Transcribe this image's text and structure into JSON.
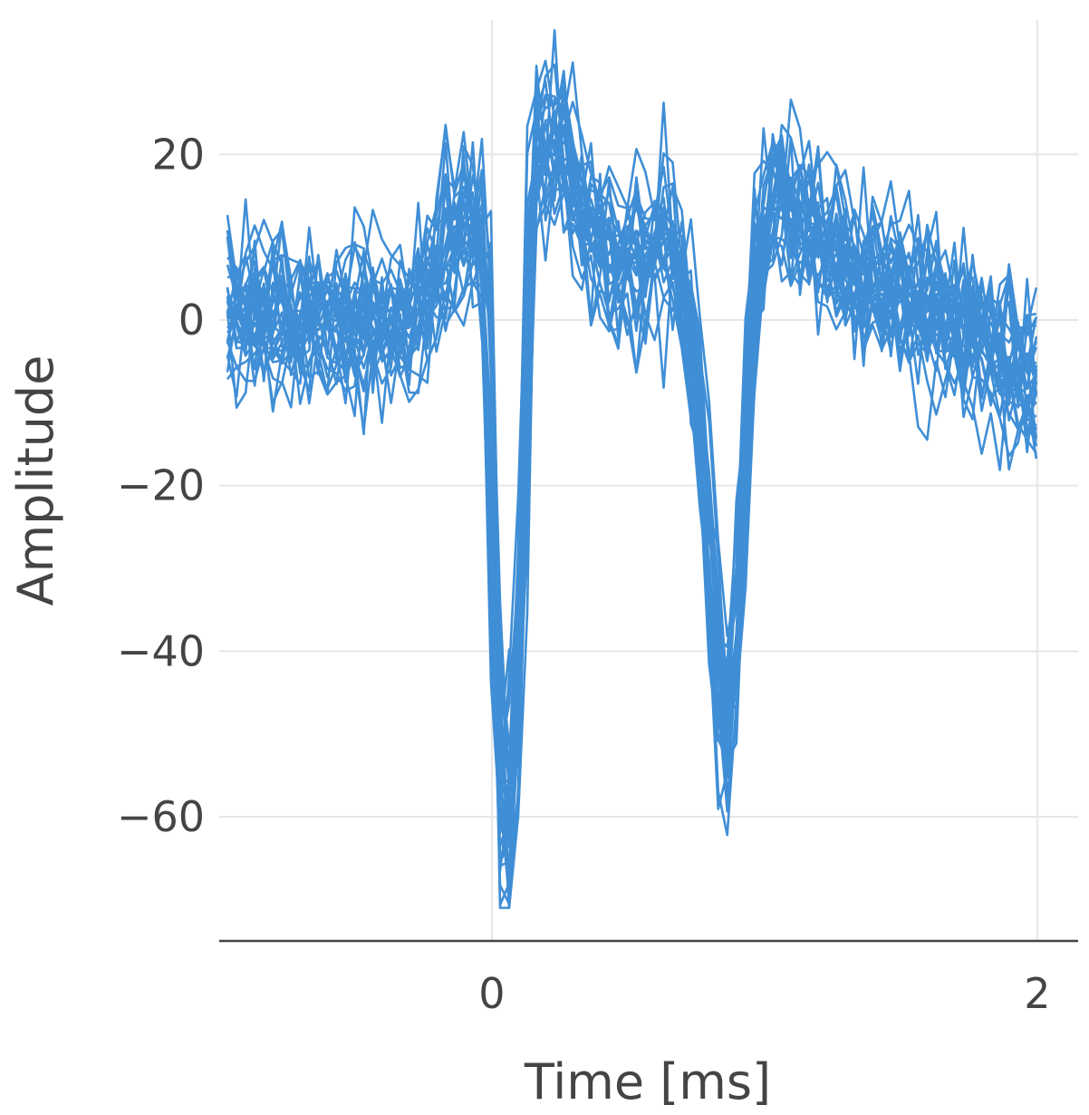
{
  "chart_data": {
    "type": "line",
    "xlabel": "Time [ms]",
    "ylabel": "Amplitude",
    "xlim": [
      -1.0,
      2.15
    ],
    "ylim": [
      -75,
      37
    ],
    "x_ticks": [
      0,
      2
    ],
    "x_tick_labels": [
      "0",
      "2"
    ],
    "y_ticks": [
      20,
      0,
      -20,
      -40,
      -60
    ],
    "y_tick_labels": [
      "20",
      "0",
      "−20",
      "−40",
      "−60"
    ],
    "grid": true,
    "legend": false,
    "series_color": "#3f8ed6",
    "series_count": 30,
    "sample_interval_ms": 0.03333,
    "time_range_ms": [
      -0.97,
      2.0
    ],
    "mean_waveform": {
      "x": [
        -0.97,
        -0.6,
        -0.3,
        -0.15,
        -0.07,
        -0.02,
        0.0,
        0.02,
        0.06,
        0.1,
        0.15,
        0.25,
        0.35,
        0.45,
        0.55,
        0.65,
        0.72,
        0.78,
        0.82,
        0.86,
        0.9,
        0.96,
        1.03,
        1.1,
        1.2,
        1.4,
        1.7,
        1.9,
        2.0
      ],
      "y": [
        1,
        0,
        0,
        10,
        13,
        8,
        -10,
        -55,
        -65,
        -45,
        20,
        23,
        12,
        7,
        8,
        10,
        3,
        -20,
        -40,
        -52,
        -40,
        5,
        16,
        14,
        10,
        5,
        0,
        -5,
        -8
      ]
    },
    "trough_1": {
      "x": 0.0,
      "y": -70
    },
    "trough_2": {
      "x": 0.86,
      "y": -57
    },
    "peak": {
      "x": 0.15,
      "y": 33
    }
  }
}
